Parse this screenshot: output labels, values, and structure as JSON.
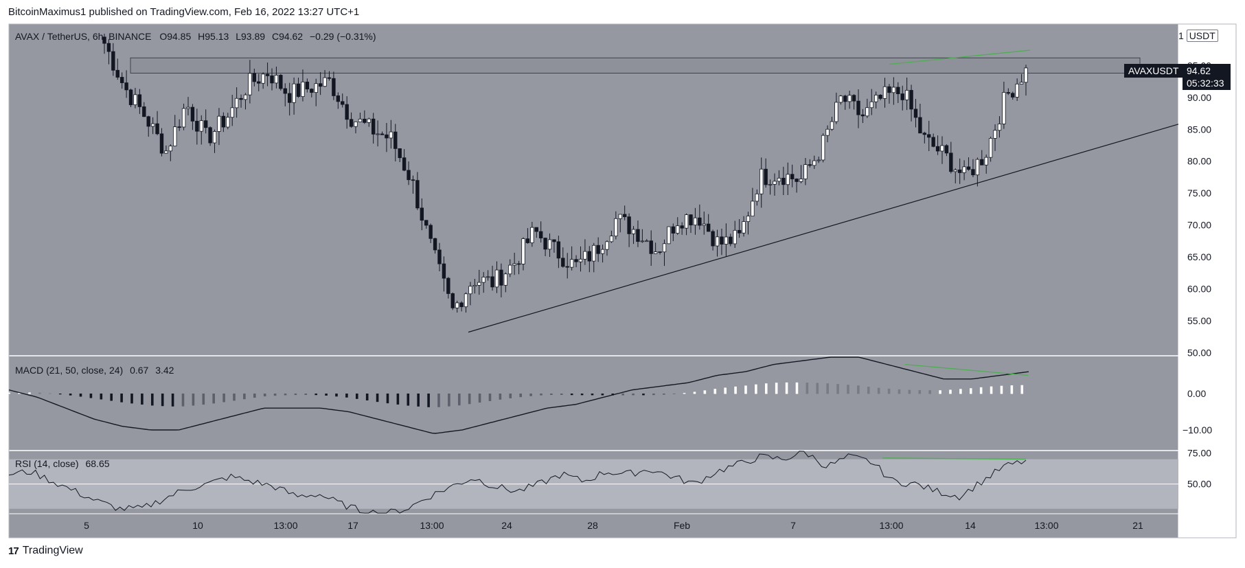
{
  "header": {
    "text": "BitcoinMaximus1 published on TradingView.com, Feb 16, 2022 13:27 UTC+1"
  },
  "footer": {
    "brand": "TradingView"
  },
  "legend": {
    "symbol": "AVAX / TetherUS, 6h, BINANCE",
    "o_label": "O",
    "o": "94.85",
    "h_label": "H",
    "h": "95.13",
    "l_label": "L",
    "l": "93.89",
    "c_label": "C",
    "c": "94.62",
    "change": "−0.29 (−0.31%)",
    "currency": "USDT"
  },
  "price_tag": {
    "symbol": "AVAXUSDT",
    "price": "94.62",
    "countdown": "05:32:33"
  },
  "macd_legend": {
    "label": "MACD (21, 50, close, 24)",
    "v1": "0.67",
    "v2": "3.42"
  },
  "rsi_legend": {
    "label": "RSI (14, close)",
    "value": "68.65"
  },
  "colors": {
    "background": "#9598a1",
    "panel_bg": "#9598a1",
    "rsi_band": "#b2b5be",
    "divergence": "#4caf50",
    "text": "#131722"
  },
  "chart_data": [
    {
      "type": "candlestick",
      "title": "AVAX / TetherUS, 6h, BINANCE",
      "y_ticks": [
        "95.00",
        "90.00",
        "85.00",
        "80.00",
        "75.00",
        "70.00",
        "65.00",
        "60.00",
        "55.00",
        "50.00"
      ],
      "ylim": [
        49.5,
        101.5
      ],
      "x_ticks": [
        "5",
        "10",
        "13:00",
        "17",
        "13:00",
        "24",
        "28",
        "Feb",
        "7",
        "13:00",
        "14",
        "13:00",
        "21"
      ],
      "price_series_approx": [
        [
          101,
          96
        ],
        [
          93,
          90
        ],
        [
          88,
          86
        ],
        [
          83,
          80
        ],
        [
          88,
          90
        ],
        [
          85,
          82
        ],
        [
          86,
          88
        ],
        [
          90,
          94
        ],
        [
          95,
          93
        ],
        [
          90,
          91
        ],
        [
          90,
          93
        ],
        [
          94,
          91
        ],
        [
          88,
          86
        ],
        [
          84,
          86
        ],
        [
          85,
          82
        ],
        [
          80,
          74
        ],
        [
          70,
          62
        ],
        [
          57,
          56
        ],
        [
          60,
          63
        ],
        [
          63,
          59
        ],
        [
          62,
          66
        ],
        [
          68,
          70
        ],
        [
          68,
          64
        ],
        [
          64,
          63
        ],
        [
          64,
          68
        ],
        [
          70,
          72
        ],
        [
          70,
          68
        ],
        [
          65,
          67
        ],
        [
          70,
          72
        ],
        [
          73,
          70
        ],
        [
          68,
          66
        ],
        [
          67,
          69
        ],
        [
          75,
          80
        ],
        [
          79,
          77
        ],
        [
          76,
          78
        ],
        [
          80,
          84
        ],
        [
          88,
          92
        ],
        [
          88,
          86
        ],
        [
          89,
          91
        ],
        [
          93,
          89
        ],
        [
          86,
          81
        ],
        [
          82,
          80
        ],
        [
          78,
          77
        ],
        [
          79,
          83
        ],
        [
          88,
          92
        ],
        [
          94,
          94.62
        ]
      ],
      "resistance_band": [
        93.8,
        96.2
      ],
      "ascending_support": {
        "from": [
          53.2
        ],
        "to": [
          85.8
        ]
      }
    },
    {
      "type": "macd",
      "name": "MACD (21, 50, close, 24)",
      "y_ticks": [
        "0.00",
        "−10.00"
      ]
    },
    {
      "type": "line",
      "name": "RSI (14, close)",
      "y_ticks": [
        "75.00",
        "50.00"
      ],
      "last": 68.65
    }
  ]
}
